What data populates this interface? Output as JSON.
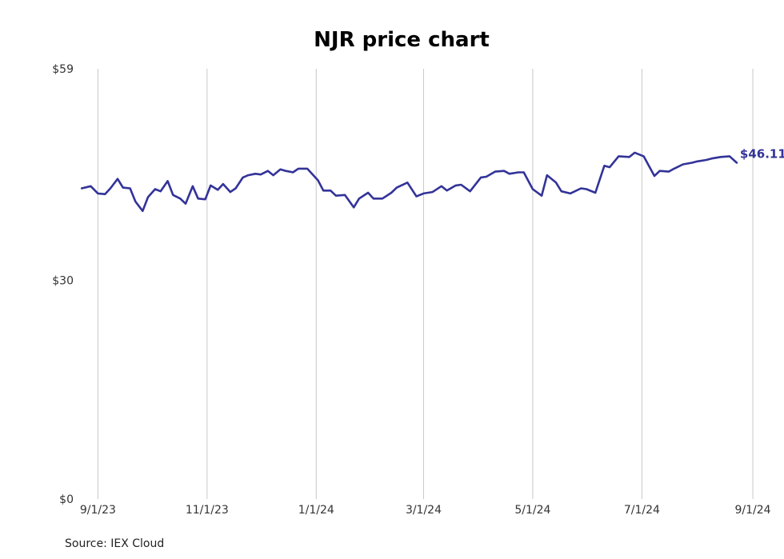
{
  "chart_data": {
    "type": "line",
    "title": "NJR price chart",
    "source": "Source: IEX Cloud",
    "line_color": "#333399",
    "y_ticks": [
      {
        "value": 0,
        "label": "$0"
      },
      {
        "value": 30,
        "label": "$30"
      },
      {
        "value": 59,
        "label": "$59"
      }
    ],
    "ylim": [
      0,
      59
    ],
    "x_ticks": [
      {
        "date": "2023-09-01",
        "label": "9/1/23"
      },
      {
        "date": "2023-11-01",
        "label": "11/1/23"
      },
      {
        "date": "2024-01-01",
        "label": "1/1/24"
      },
      {
        "date": "2024-03-01",
        "label": "3/1/24"
      },
      {
        "date": "2024-05-01",
        "label": "5/1/24"
      },
      {
        "date": "2024-07-01",
        "label": "7/1/24"
      },
      {
        "date": "2024-09-01",
        "label": "9/1/24"
      }
    ],
    "xlim": [
      "2023-08-22",
      "2024-09-05"
    ],
    "grid": "vertical",
    "last_value_label": "$46.11",
    "series": [
      {
        "x": [
          "2023-08-23",
          "2023-08-28",
          "2023-09-01",
          "2023-09-05",
          "2023-09-08",
          "2023-09-12",
          "2023-09-15",
          "2023-09-19",
          "2023-09-22",
          "2023-09-26",
          "2023-09-29",
          "2023-10-03",
          "2023-10-06",
          "2023-10-10",
          "2023-10-13",
          "2023-10-17",
          "2023-10-20",
          "2023-10-24",
          "2023-10-27",
          "2023-10-31",
          "2023-11-03",
          "2023-11-07",
          "2023-11-10",
          "2023-11-14",
          "2023-11-17",
          "2023-11-21",
          "2023-11-24",
          "2023-11-28",
          "2023-12-01",
          "2023-12-05",
          "2023-12-08",
          "2023-12-12",
          "2023-12-15",
          "2023-12-19",
          "2023-12-22",
          "2023-12-27",
          "2024-01-02",
          "2024-01-05",
          "2024-01-09",
          "2024-01-12",
          "2024-01-17",
          "2024-01-22",
          "2024-01-25",
          "2024-01-30",
          "2024-02-02",
          "2024-02-07",
          "2024-02-12",
          "2024-02-15",
          "2024-02-21",
          "2024-02-26",
          "2024-03-01",
          "2024-03-06",
          "2024-03-11",
          "2024-03-14",
          "2024-03-19",
          "2024-03-22",
          "2024-03-27",
          "2024-04-02",
          "2024-04-05",
          "2024-04-10",
          "2024-04-15",
          "2024-04-18",
          "2024-04-23",
          "2024-04-26",
          "2024-05-01",
          "2024-05-06",
          "2024-05-09",
          "2024-05-14",
          "2024-05-17",
          "2024-05-22",
          "2024-05-28",
          "2024-05-31",
          "2024-06-05",
          "2024-06-10",
          "2024-06-13",
          "2024-06-18",
          "2024-06-24",
          "2024-06-27",
          "2024-07-02",
          "2024-07-08",
          "2024-07-11",
          "2024-07-16",
          "2024-07-19",
          "2024-07-24",
          "2024-07-29",
          "2024-08-01",
          "2024-08-06",
          "2024-08-09",
          "2024-08-14",
          "2024-08-19",
          "2024-08-23"
        ],
        "values": [
          42.6,
          42.9,
          41.9,
          41.8,
          42.6,
          43.9,
          42.7,
          42.6,
          40.8,
          39.5,
          41.4,
          42.5,
          42.2,
          43.6,
          41.7,
          41.2,
          40.5,
          42.9,
          41.2,
          41.1,
          43.0,
          42.4,
          43.2,
          42.1,
          42.6,
          44.1,
          44.4,
          44.6,
          44.5,
          45.0,
          44.4,
          45.2,
          45.0,
          44.8,
          45.3,
          45.3,
          43.7,
          42.3,
          42.3,
          41.6,
          41.7,
          40.0,
          41.2,
          42.0,
          41.2,
          41.2,
          42.0,
          42.7,
          43.4,
          41.5,
          41.9,
          42.1,
          42.9,
          42.3,
          43.0,
          43.1,
          42.2,
          44.1,
          44.2,
          44.9,
          45.0,
          44.6,
          44.8,
          44.8,
          42.5,
          41.6,
          44.4,
          43.4,
          42.2,
          41.9,
          42.6,
          42.5,
          42.0,
          45.7,
          45.5,
          47.0,
          46.9,
          47.5,
          47.0,
          44.3,
          45.0,
          44.9,
          45.3,
          45.9,
          46.11,
          46.3,
          46.5,
          46.7,
          46.9,
          47.0,
          46.11
        ]
      }
    ]
  }
}
